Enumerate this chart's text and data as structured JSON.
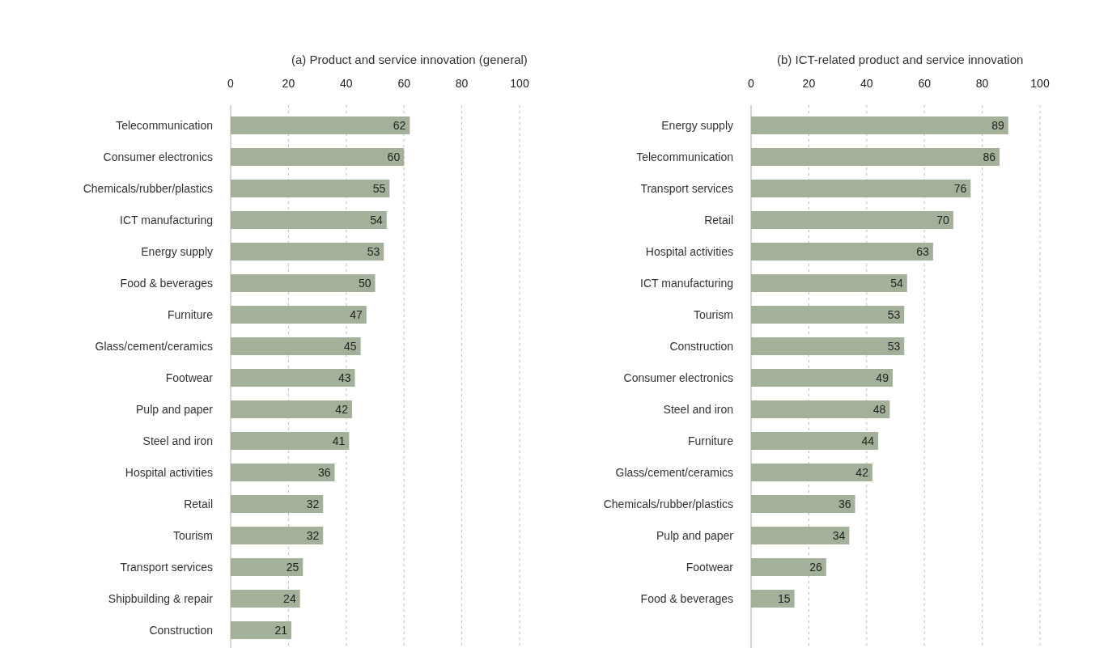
{
  "chart_data": [
    {
      "type": "bar",
      "orientation": "horizontal",
      "title": "(a) Product and service innovation (general)",
      "categories": [
        "Telecommunication",
        "Consumer electronics",
        "Chemicals/rubber/plastics",
        "ICT manufacturing",
        "Energy supply",
        "Food & beverages",
        "Furniture",
        "Glass/cement/ceramics",
        "Footwear",
        "Pulp and paper",
        "Steel and iron",
        "Hospital activities",
        "Retail",
        "Tourism",
        "Transport services",
        "Shipbuilding & repair",
        "Construction"
      ],
      "values": [
        62,
        60,
        55,
        54,
        53,
        50,
        47,
        45,
        43,
        42,
        41,
        36,
        32,
        32,
        25,
        24,
        21
      ],
      "color": "#a3b09a",
      "xlim": [
        0,
        100
      ],
      "xticks": [
        0,
        20,
        40,
        60,
        80,
        100
      ],
      "grid": "x",
      "data_labels": true
    },
    {
      "type": "bar",
      "orientation": "horizontal",
      "title": "(b) ICT-related product and service innovation",
      "categories": [
        "Energy supply",
        "Telecommunication",
        "Transport services",
        "Retail",
        "Hospital activities",
        "ICT manufacturing",
        "Tourism",
        "Construction",
        "Consumer electronics",
        "Steel and iron",
        "Furniture",
        "Glass/cement/ceramics",
        "Chemicals/rubber/plastics",
        "Pulp and paper",
        "Footwear",
        "Food & beverages"
      ],
      "values": [
        89,
        86,
        76,
        70,
        63,
        54,
        53,
        53,
        49,
        48,
        44,
        42,
        36,
        34,
        26,
        15
      ],
      "color": "#a3b09a",
      "xlim": [
        0,
        100
      ],
      "xticks": [
        0,
        20,
        40,
        60,
        80,
        100
      ],
      "grid": "x",
      "data_labels": true
    }
  ]
}
